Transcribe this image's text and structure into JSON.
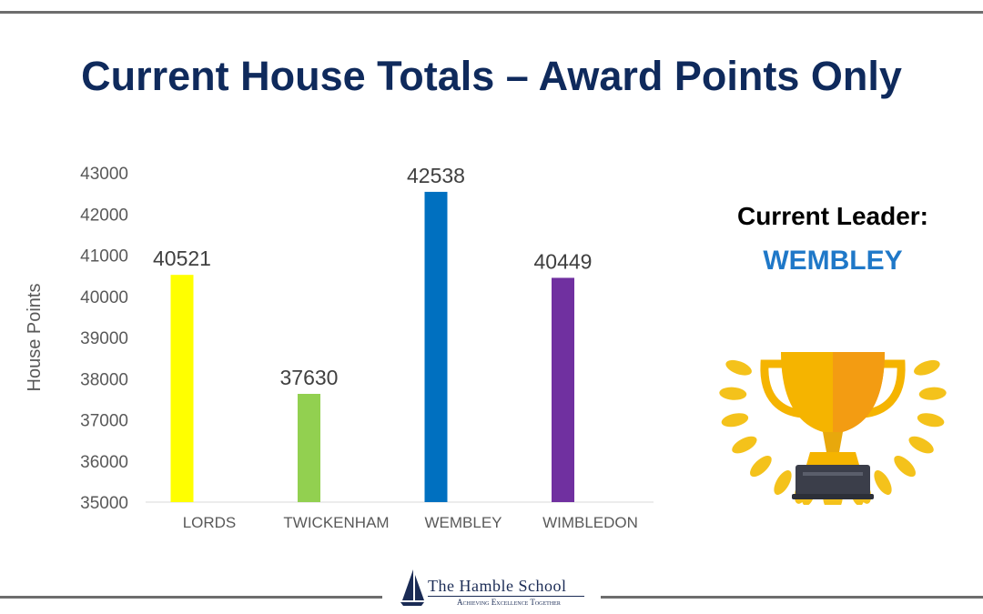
{
  "slide": {
    "title": "Current House Totals – Award Points Only",
    "leader_heading": "Current Leader:",
    "leader_name": "WEMBLEY",
    "school_name": "The Hamble School",
    "school_tagline": "Achieving Excellence Together"
  },
  "colors": {
    "title": "#0f2a5c",
    "leader_name": "#1f78c8",
    "trophy_gold": "#f5b400",
    "laurel_gold": "#f4c21b",
    "trophy_base": "#3b3e4a"
  },
  "icons": {
    "trophy": "trophy-icon",
    "laurel": "laurel-wreath-icon",
    "logo": "sailboat-logo-icon"
  },
  "chart_data": {
    "type": "bar",
    "categories": [
      "LORDS",
      "TWICKENHAM",
      "WEMBLEY",
      "WIMBLEDON"
    ],
    "values": [
      40521,
      37630,
      42538,
      40449
    ],
    "colors": [
      "#ffff00",
      "#92d050",
      "#0070c0",
      "#7030a0"
    ],
    "ylabel": "House Points",
    "xlabel": "",
    "ylim": [
      35000,
      43000
    ],
    "yticks": [
      35000,
      36000,
      37000,
      38000,
      39000,
      40000,
      41000,
      42000,
      43000
    ],
    "data_labels": true,
    "grid": false,
    "legend": false
  }
}
